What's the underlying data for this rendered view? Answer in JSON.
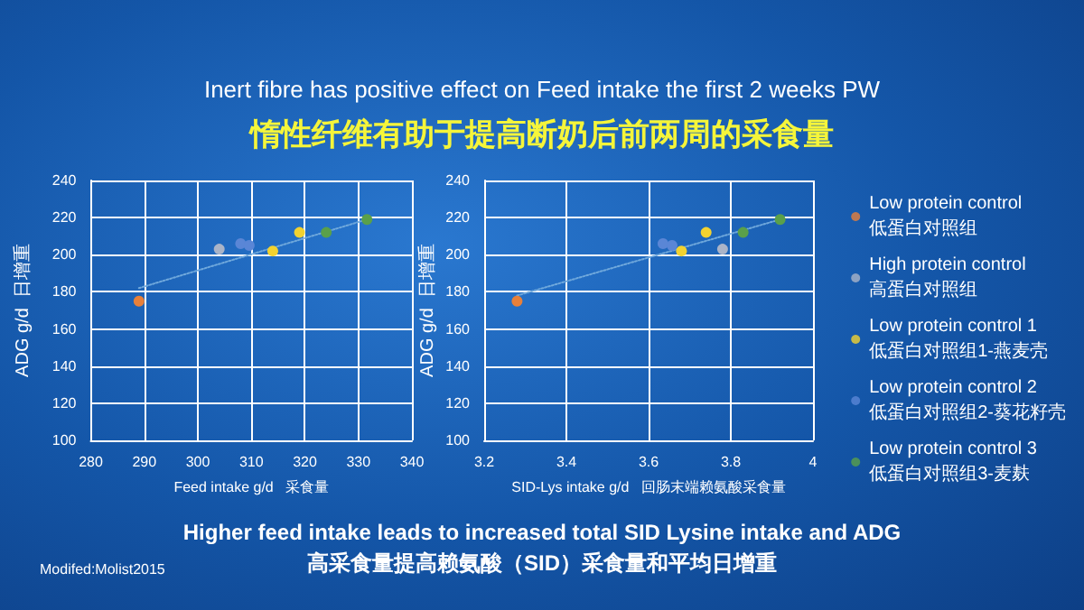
{
  "chart_data": [
    {
      "type": "scatter",
      "title": "Inert fibre has positive effect on Feed intake the first 2 weeks PW",
      "subtitle": "惰性纤维有助于提高断奶后前两周的采食量",
      "annotations": [
        "Higher feed intake leads to increased total SID Lysine intake and ADG",
        "高采食量提高赖氨酸（SID）采食量和平均日增重",
        "Modifed:Molist2015"
      ],
      "xlabel": "Feed intake g/d   采食量",
      "ylabel": "ADG g/d  日增重",
      "xlim": [
        280,
        340
      ],
      "xticks": [
        280,
        290,
        300,
        310,
        320,
        330,
        340
      ],
      "ylim": [
        100,
        240
      ],
      "yticks": [
        100,
        120,
        140,
        160,
        180,
        200,
        220,
        240
      ],
      "grid": true,
      "legend": false,
      "marker": "circle",
      "series": [
        {
          "color": "#e8803a",
          "x": [
            289
          ],
          "values": [
            175
          ]
        },
        {
          "color": "#aab4c8",
          "x": [
            304
          ],
          "values": [
            203
          ]
        },
        {
          "color": "#f2d230",
          "x": [
            314,
            319
          ],
          "values": [
            202,
            212
          ]
        },
        {
          "color": "#5a86d6",
          "x": [
            308,
            309.6
          ],
          "values": [
            206,
            205
          ]
        },
        {
          "color": "#5aa04a",
          "x": [
            324,
            331.6
          ],
          "values": [
            212,
            219
          ]
        },
        {
          "type": "line",
          "color": "#6fa8dc",
          "line_style": "dotted",
          "marker": "none",
          "x": [
            289,
            331.6
          ],
          "values": [
            182,
            219
          ]
        }
      ]
    },
    {
      "type": "scatter",
      "xlabel": "SID-Lys intake g/d   回肠末端赖氨酸采食量",
      "ylabel": "ADG g/d  日增重",
      "xlim": [
        3.2,
        4
      ],
      "xticks": [
        3.2,
        3.4,
        3.6,
        3.8,
        4
      ],
      "ylim": [
        100,
        240
      ],
      "yticks": [
        100,
        120,
        140,
        160,
        180,
        200,
        220,
        240
      ],
      "grid": true,
      "legend": "right",
      "marker": "circle",
      "series": [
        {
          "name": "Low protein control\n低蛋白对照组",
          "color": "#e8803a",
          "x": [
            3.28
          ],
          "values": [
            175
          ]
        },
        {
          "name": "High protein control\n高蛋白对照组",
          "color": "#aab4c8",
          "x": [
            3.78
          ],
          "values": [
            203
          ]
        },
        {
          "name": "Low protein control 1\n低蛋白对照组1-燕麦壳",
          "color": "#f2d230",
          "x": [
            3.68,
            3.74
          ],
          "values": [
            202,
            212
          ]
        },
        {
          "name": "Low protein control 2\n低蛋白对照组2-葵花籽壳",
          "color": "#5a86d6",
          "x": [
            3.635,
            3.657
          ],
          "values": [
            206,
            205
          ]
        },
        {
          "name": "Low protein control 3\n低蛋白对照组3-麦麸",
          "color": "#5aa04a",
          "x": [
            3.83,
            3.92
          ],
          "values": [
            212,
            219
          ]
        },
        {
          "type": "line",
          "color": "#6fa8dc",
          "line_style": "dotted",
          "marker": "none",
          "x": [
            3.28,
            3.92
          ],
          "values": [
            178,
            219
          ]
        }
      ]
    }
  ]
}
